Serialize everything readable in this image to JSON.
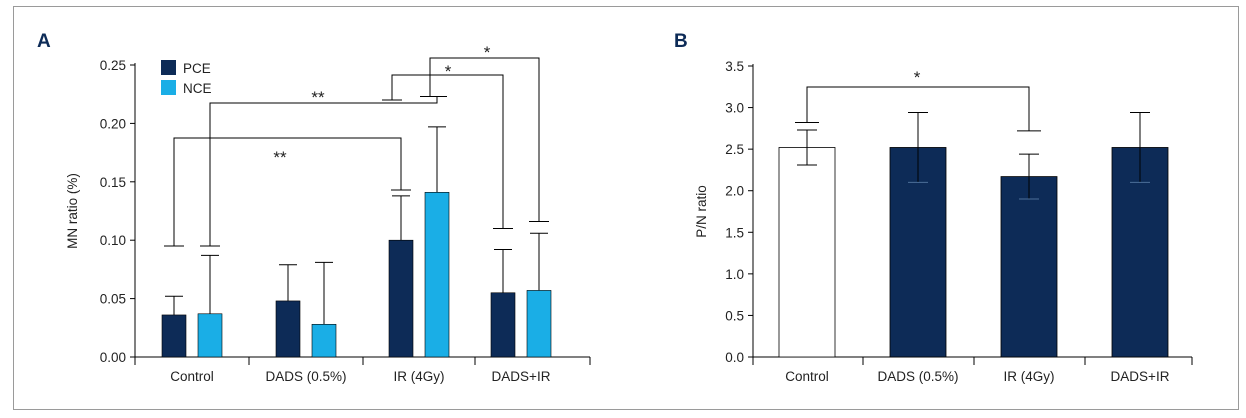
{
  "figure": {
    "colors": {
      "pce": "#0d2b57",
      "nce": "#1aaee6",
      "axis": "#000000",
      "frame": "#9a9a9a",
      "open_bar": "#ffffff"
    }
  },
  "chart_data": [
    {
      "panel_label": "A",
      "type": "bar",
      "ylabel": "MN ratio (%)",
      "xlabel": "",
      "ylim": [
        0,
        0.25
      ],
      "yticks": [
        "0.00",
        "0.05",
        "0.10",
        "0.15",
        "0.20",
        "0.25"
      ],
      "categories": [
        "Control",
        "DADS (0.5%)",
        "IR (4Gy)",
        "DADS+IR"
      ],
      "legend_position": "top-left",
      "series": [
        {
          "name": "PCE",
          "color": "#0d2b57",
          "values": [
            0.036,
            0.048,
            0.1,
            0.055
          ],
          "errors": [
            0.016,
            0.031,
            0.038,
            0.037
          ]
        },
        {
          "name": "NCE",
          "color": "#1aaee6",
          "values": [
            0.037,
            0.028,
            0.141,
            0.057
          ],
          "errors": [
            0.05,
            0.053,
            0.056,
            0.049
          ]
        }
      ],
      "significance": [
        {
          "label": "**",
          "from": [
            0,
            0
          ],
          "to": [
            2,
            0
          ]
        },
        {
          "label": "**",
          "from": [
            0,
            1
          ],
          "to": [
            2,
            1
          ]
        },
        {
          "label": "*",
          "from": [
            2,
            0
          ],
          "to": [
            3,
            0
          ]
        },
        {
          "label": "*",
          "from": [
            2,
            1
          ],
          "to": [
            3,
            1
          ]
        }
      ]
    },
    {
      "panel_label": "B",
      "type": "bar",
      "ylabel": "P/N ratio",
      "xlabel": "",
      "ylim": [
        0,
        3.5
      ],
      "yticks": [
        "0.0",
        "0.5",
        "1.0",
        "1.5",
        "2.0",
        "2.5",
        "3.0",
        "3.5"
      ],
      "categories": [
        "Control",
        "DADS (0.5%)",
        "IR (4Gy)",
        "DADS+IR"
      ],
      "series": [
        {
          "name": "",
          "values": [
            2.52,
            2.52,
            2.17,
            2.52
          ],
          "errors": [
            0.21,
            0.42,
            0.27,
            0.42
          ],
          "fills": [
            "#ffffff",
            "#0d2b57",
            "#0d2b57",
            "#0d2b57"
          ]
        }
      ],
      "significance": [
        {
          "label": "*",
          "from": [
            0,
            0
          ],
          "to": [
            2,
            0
          ]
        }
      ]
    }
  ]
}
